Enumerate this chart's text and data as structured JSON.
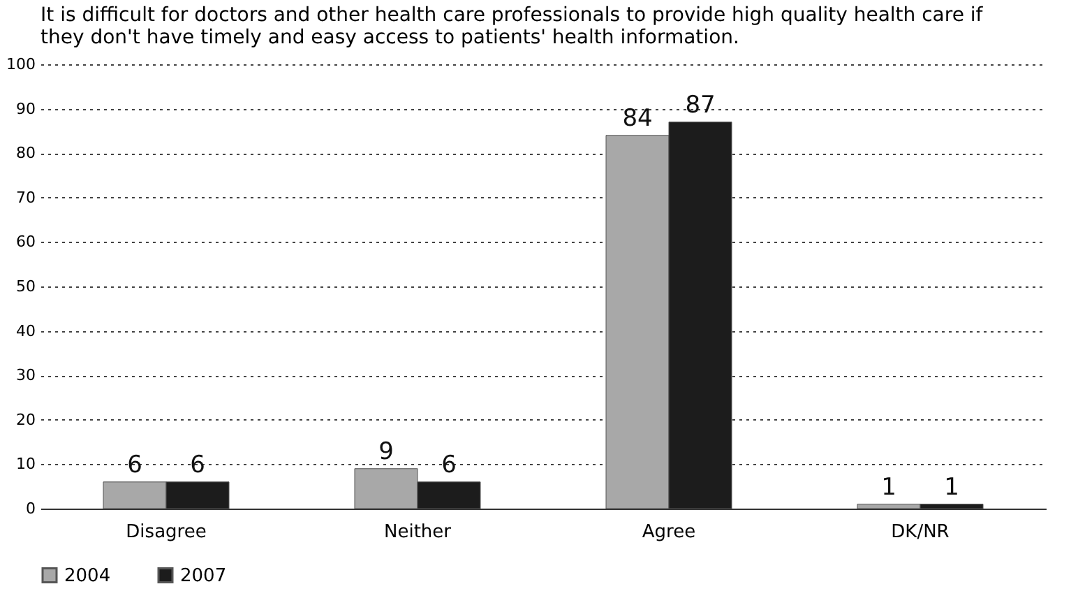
{
  "chart_data": {
    "type": "bar",
    "title": "It is difficult for doctors and other health care professionals to provide high quality health care if they don't have timely and easy access to patients' health information.",
    "categories": [
      "Disagree",
      "Neither",
      "Agree",
      "DK/NR"
    ],
    "series": [
      {
        "name": "2004",
        "color": "#a8a8a8",
        "values": [
          6,
          9,
          84,
          1
        ]
      },
      {
        "name": "2007",
        "color": "#1c1c1c",
        "values": [
          6,
          6,
          87,
          1
        ]
      }
    ],
    "ylim": [
      0,
      100
    ],
    "yticks": [
      0,
      10,
      20,
      30,
      40,
      50,
      60,
      70,
      80,
      90,
      100
    ],
    "grid": "y",
    "legend": "bottom",
    "data_labels": true
  }
}
